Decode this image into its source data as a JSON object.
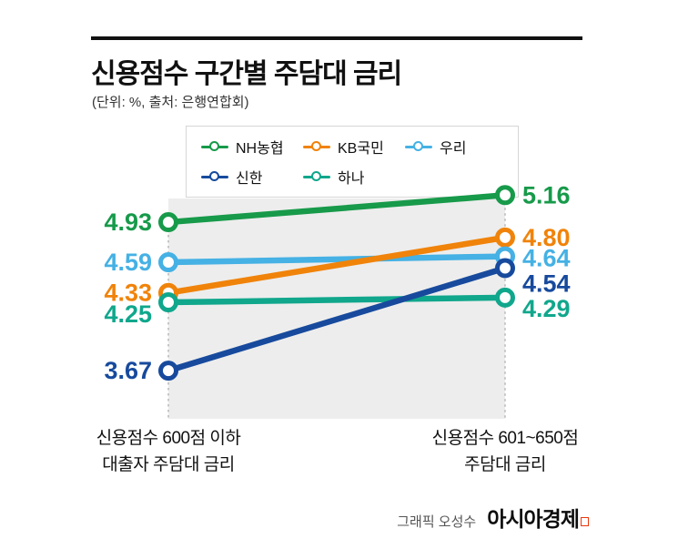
{
  "title": "신용점수 구간별 주담대 금리",
  "subtitle": "(단위: %, 출처: 은행연합회)",
  "footer": {
    "credit": "그래픽 오성수",
    "logo": "아시아경제"
  },
  "chart_data": {
    "type": "line",
    "title": "신용점수 구간별 주담대 금리",
    "unit": "%",
    "source": "은행연합회",
    "categories": [
      "신용점수 600점 이하\n대출자 주담대 금리",
      "신용점수 601~650점\n주담대 금리"
    ],
    "series": [
      {
        "name": "NH농협",
        "color": "#179a4a",
        "values": [
          4.93,
          5.16
        ]
      },
      {
        "name": "KB국민",
        "color": "#f0830a",
        "values": [
          4.33,
          4.8
        ]
      },
      {
        "name": "우리",
        "color": "#45b1e4",
        "values": [
          4.59,
          4.64
        ]
      },
      {
        "name": "신한",
        "color": "#174a9d",
        "values": [
          3.67,
          4.54
        ]
      },
      {
        "name": "하나",
        "color": "#10a78c",
        "values": [
          4.25,
          4.29
        ]
      }
    ],
    "ylim": [
      3.5,
      5.4
    ],
    "legend_position": "top",
    "grid": false,
    "value_labels": true
  }
}
